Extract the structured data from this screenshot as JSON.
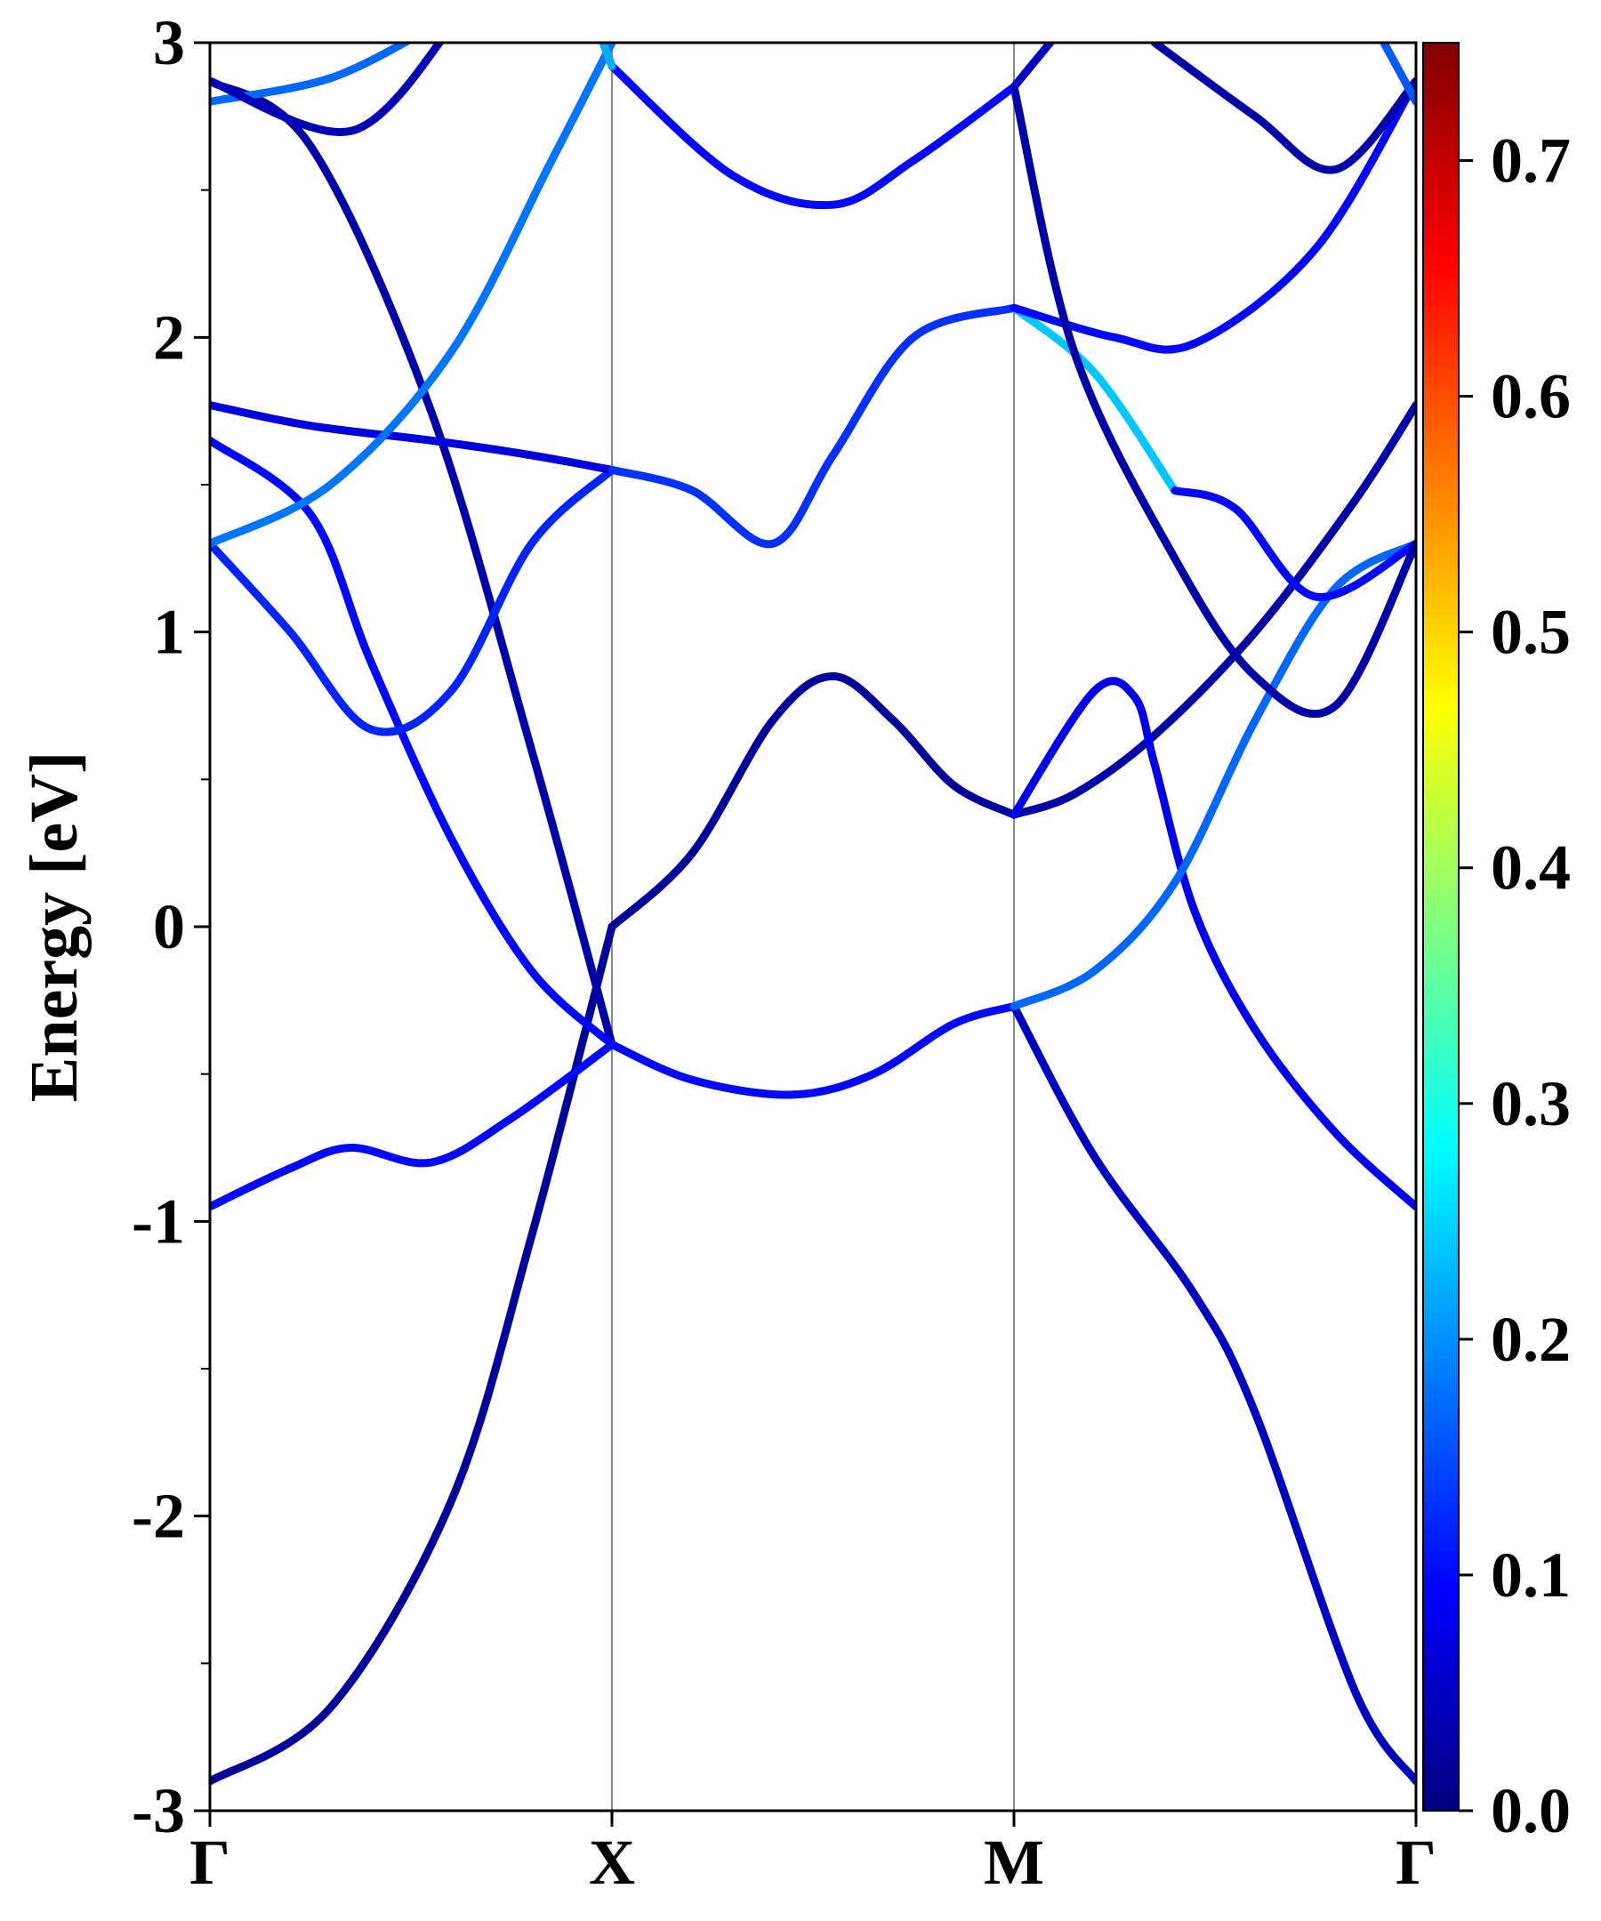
{
  "chart_data": {
    "type": "line",
    "subtype": "band-structure",
    "title": "",
    "ylabel": "Energy [eV]",
    "xlabel": "",
    "ylim": [
      -3,
      3
    ],
    "yticks": [
      -3,
      -2,
      -1,
      0,
      1,
      2,
      3
    ],
    "ytick_labels": [
      "-3",
      "-2",
      "-1",
      "0",
      "1",
      "2",
      "3"
    ],
    "x_range": [
      0,
      3
    ],
    "kpoints": [
      {
        "label": "Γ",
        "x": 0
      },
      {
        "label": "X",
        "x": 1
      },
      {
        "label": "M",
        "x": 2
      },
      {
        "label": "Γ",
        "x": 3
      }
    ],
    "colorbar": {
      "colormap": "jet",
      "range": [
        0.0,
        0.75
      ],
      "ticks": [
        0.0,
        0.1,
        0.2,
        0.3,
        0.4,
        0.5,
        0.6,
        0.7
      ],
      "tick_labels": [
        "0.0",
        "0.1",
        "0.2",
        "0.3",
        "0.4",
        "0.5",
        "0.6",
        "0.7"
      ]
    },
    "series": [
      {
        "weight": 0.02,
        "points": [
          [
            0,
            -2.9
          ],
          [
            0.3,
            -2.65
          ],
          [
            0.6,
            -1.95
          ],
          [
            0.8,
            -1.05
          ],
          [
            1,
            0
          ]
        ]
      },
      {
        "weight": 0.02,
        "points": [
          [
            1,
            0
          ],
          [
            1.2,
            0.25
          ],
          [
            1.4,
            0.7
          ],
          [
            1.55,
            0.85
          ],
          [
            1.7,
            0.7
          ],
          [
            1.85,
            0.48
          ],
          [
            2,
            0.38
          ]
        ]
      },
      {
        "weight": 0.03,
        "points": [
          [
            2,
            0.38
          ],
          [
            2.15,
            0.45
          ],
          [
            2.35,
            0.65
          ],
          [
            2.6,
            1.0
          ],
          [
            2.85,
            1.45
          ],
          [
            3,
            1.77
          ]
        ]
      },
      {
        "weight": 0.08,
        "points": [
          [
            2,
            0.38
          ],
          [
            2.2,
            0.8
          ],
          [
            2.3,
            0.78
          ],
          [
            2.35,
            0.55
          ],
          [
            2.45,
            0.05
          ],
          [
            2.6,
            -0.35
          ],
          [
            2.8,
            -0.7
          ],
          [
            3,
            -0.95
          ]
        ]
      },
      {
        "weight": 0.1,
        "points": [
          [
            0,
            -0.95
          ],
          [
            0.2,
            -0.82
          ],
          [
            0.35,
            -0.75
          ],
          [
            0.55,
            -0.8
          ],
          [
            0.75,
            -0.65
          ],
          [
            1,
            -0.4
          ]
        ]
      },
      {
        "weight": 0.1,
        "points": [
          [
            1,
            -0.4
          ],
          [
            1.2,
            -0.52
          ],
          [
            1.45,
            -0.57
          ],
          [
            1.65,
            -0.5
          ],
          [
            1.85,
            -0.33
          ],
          [
            2,
            -0.27
          ]
        ]
      },
      {
        "weight": 0.05,
        "points": [
          [
            2,
            -0.27
          ],
          [
            2.2,
            -0.78
          ],
          [
            2.45,
            -1.25
          ],
          [
            2.6,
            -1.65
          ],
          [
            2.85,
            -2.6
          ],
          [
            3,
            -2.9
          ]
        ]
      },
      {
        "weight": 0.17,
        "points": [
          [
            2,
            -0.27
          ],
          [
            2.2,
            -0.15
          ],
          [
            2.4,
            0.15
          ],
          [
            2.6,
            0.7
          ],
          [
            2.8,
            1.15
          ],
          [
            3,
            1.3
          ]
        ]
      },
      {
        "weight": 0.03,
        "points": [
          [
            0,
            2.87
          ],
          [
            0.25,
            2.65
          ],
          [
            0.55,
            1.75
          ],
          [
            0.8,
            0.6
          ],
          [
            1,
            -0.4
          ]
        ]
      },
      {
        "weight": 0.1,
        "points": [
          [
            0,
            1.65
          ],
          [
            0.25,
            1.4
          ],
          [
            0.4,
            0.9
          ],
          [
            0.6,
            0.3
          ],
          [
            0.8,
            -0.15
          ],
          [
            1,
            -0.4
          ]
        ]
      },
      {
        "weight": 0.12,
        "points": [
          [
            0,
            1.3
          ],
          [
            0.2,
            1.0
          ],
          [
            0.4,
            0.67
          ],
          [
            0.6,
            0.8
          ],
          [
            0.8,
            1.3
          ],
          [
            1,
            1.55
          ]
        ]
      },
      {
        "weight": 0.07,
        "points": [
          [
            0,
            1.77
          ],
          [
            0.25,
            1.7
          ],
          [
            0.55,
            1.65
          ],
          [
            0.8,
            1.6
          ],
          [
            1,
            1.55
          ]
        ]
      },
      {
        "weight": 0.18,
        "points": [
          [
            0,
            1.3
          ],
          [
            0.3,
            1.5
          ],
          [
            0.6,
            1.95
          ],
          [
            0.85,
            2.6
          ],
          [
            1,
            3.0
          ]
        ]
      },
      {
        "weight": 0.13,
        "points": [
          [
            1,
            1.55
          ],
          [
            1.2,
            1.48
          ],
          [
            1.4,
            1.3
          ],
          [
            1.55,
            1.6
          ],
          [
            1.75,
            2.0
          ],
          [
            2,
            2.1
          ]
        ]
      },
      {
        "weight": 0.24,
        "points": [
          [
            2,
            2.1
          ],
          [
            2.2,
            1.88
          ],
          [
            2.4,
            1.48
          ]
        ]
      },
      {
        "weight": 0.1,
        "points": [
          [
            2.4,
            1.48
          ],
          [
            2.55,
            1.42
          ],
          [
            2.75,
            1.12
          ],
          [
            3,
            1.3
          ]
        ]
      },
      {
        "weight": 0.1,
        "points": [
          [
            2,
            2.1
          ],
          [
            2.25,
            2.0
          ],
          [
            2.45,
            1.98
          ],
          [
            2.75,
            2.3
          ],
          [
            3,
            2.87
          ]
        ]
      },
      {
        "weight": 0.03,
        "points": [
          [
            2,
            2.85
          ],
          [
            2.15,
            1.95
          ],
          [
            2.4,
            1.25
          ],
          [
            2.6,
            0.85
          ],
          [
            2.8,
            0.75
          ],
          [
            3,
            1.3
          ]
        ]
      },
      {
        "weight": 0.1,
        "points": [
          [
            1,
            2.92
          ],
          [
            1.3,
            2.55
          ],
          [
            1.55,
            2.45
          ],
          [
            1.75,
            2.6
          ],
          [
            2,
            2.85
          ]
        ]
      },
      {
        "weight": 0.05,
        "points": [
          [
            2,
            2.85
          ],
          [
            2.15,
            3.1
          ]
        ]
      },
      {
        "weight": 0.03,
        "points": [
          [
            2.35,
            3.0
          ],
          [
            2.6,
            2.75
          ],
          [
            2.8,
            2.57
          ],
          [
            3,
            2.87
          ]
        ]
      },
      {
        "weight": 0.16,
        "points": [
          [
            2.9,
            3.05
          ],
          [
            3,
            2.8
          ]
        ]
      },
      {
        "weight": 0.17,
        "points": [
          [
            0,
            2.8
          ],
          [
            0.3,
            2.88
          ],
          [
            0.55,
            3.05
          ]
        ]
      },
      {
        "weight": 0.04,
        "points": [
          [
            0,
            2.87
          ],
          [
            0.35,
            2.7
          ],
          [
            0.6,
            3.05
          ]
        ]
      },
      {
        "weight": 0.22,
        "points": [
          [
            0.95,
            3.1
          ],
          [
            1,
            2.92
          ]
        ]
      }
    ]
  }
}
